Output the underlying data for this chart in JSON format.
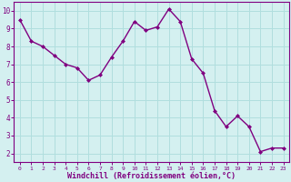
{
  "x": [
    0,
    1,
    2,
    3,
    4,
    5,
    6,
    7,
    8,
    9,
    10,
    11,
    12,
    13,
    14,
    15,
    16,
    17,
    18,
    19,
    20,
    21,
    22,
    23
  ],
  "y": [
    9.5,
    8.3,
    8.0,
    7.5,
    7.0,
    6.8,
    6.1,
    6.4,
    7.4,
    8.3,
    9.4,
    8.9,
    9.1,
    10.1,
    9.4,
    7.3,
    6.5,
    4.4,
    3.5,
    4.1,
    3.5,
    2.1,
    2.3,
    2.3
  ],
  "line_color": "#800080",
  "marker": "D",
  "marker_size": 2.0,
  "line_width": 1.0,
  "xlabel": "Windchill (Refroidissement éolien,°C)",
  "xlabel_fontsize": 6.0,
  "ytick_vals": [
    2,
    3,
    4,
    5,
    6,
    7,
    8,
    9,
    10
  ],
  "xtick_labels": [
    "0",
    "1",
    "2",
    "3",
    "4",
    "5",
    "6",
    "7",
    "8",
    "9",
    "10",
    "11",
    "12",
    "13",
    "14",
    "15",
    "16",
    "17",
    "18",
    "19",
    "20",
    "21",
    "22",
    "23"
  ],
  "xlim": [
    -0.5,
    23.5
  ],
  "ylim": [
    1.5,
    10.5
  ],
  "bg_color": "#d4f0f0",
  "grid_color": "#b0dede",
  "tick_color": "#800080",
  "label_color": "#800080",
  "spine_color": "#800080",
  "xtick_fontsize": 4.5,
  "ytick_fontsize": 5.5
}
